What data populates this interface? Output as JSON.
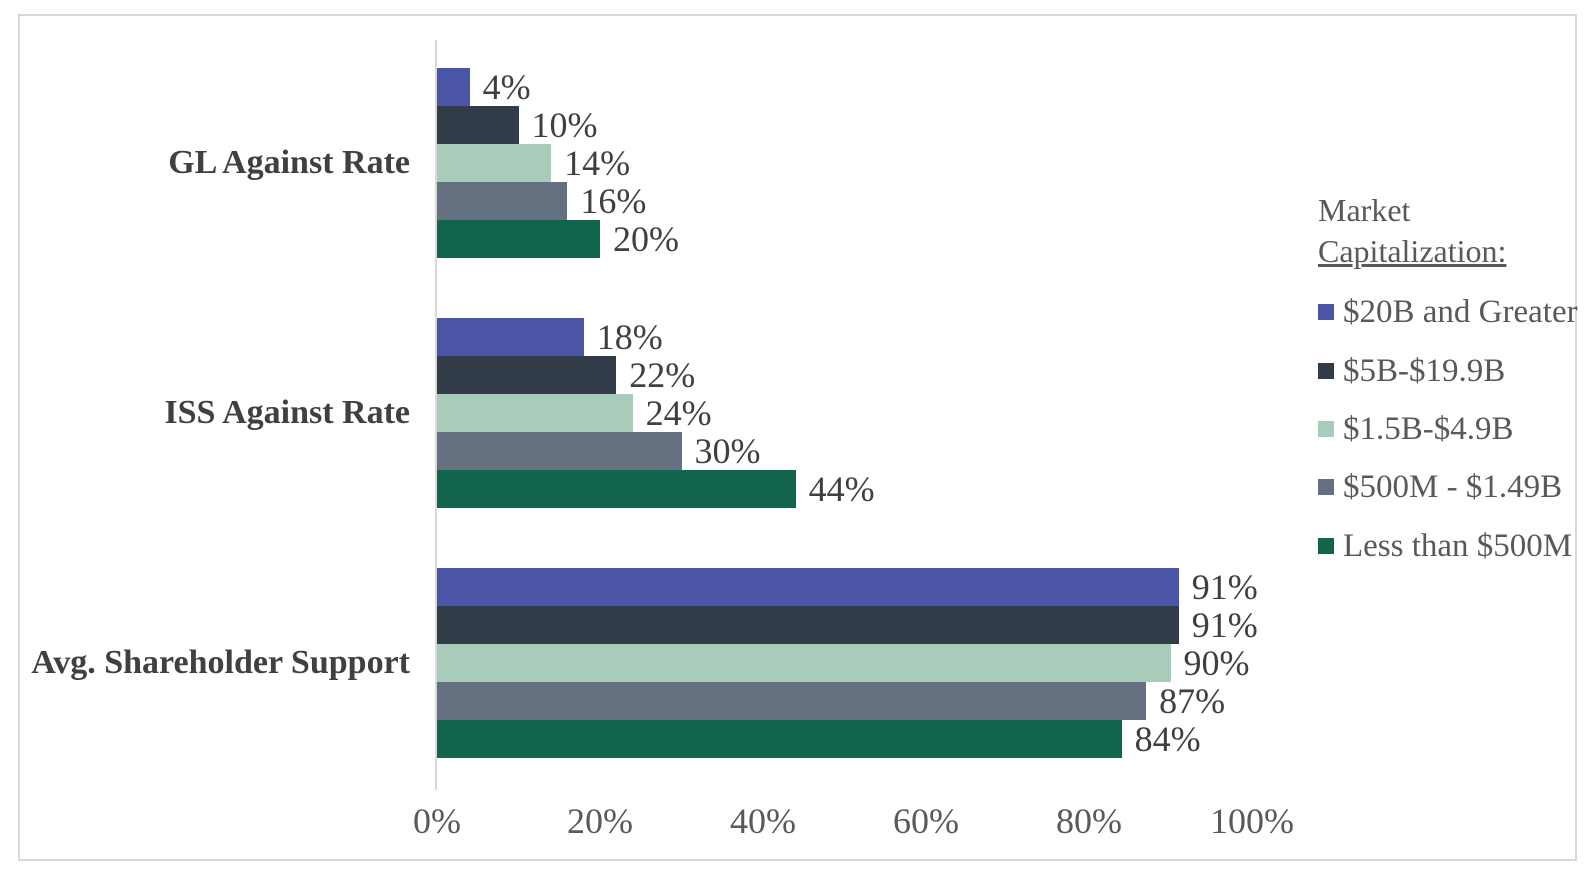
{
  "chart_data": {
    "type": "bar",
    "orientation": "horizontal",
    "title": "",
    "categories": [
      "GL Against Rate",
      "ISS Against Rate",
      "Avg. Shareholder Support"
    ],
    "series": [
      {
        "name": "$20B and Greater",
        "color": "#4A55A5",
        "values": [
          4,
          18,
          91
        ]
      },
      {
        "name": "$5B-$19.9B",
        "color": "#323C49",
        "values": [
          10,
          22,
          91
        ]
      },
      {
        "name": "$1.5B-$4.9B",
        "color": "#A9CBB9",
        "values": [
          14,
          24,
          90
        ]
      },
      {
        "name": "$500M - $1.49B",
        "color": "#657080",
        "values": [
          16,
          30,
          87
        ]
      },
      {
        "name": "Less than $500M",
        "color": "#10654C",
        "values": [
          20,
          44,
          84
        ]
      }
    ],
    "data_label_format": "{v}%",
    "x_axis": {
      "min": 0,
      "max": 100,
      "tick_step": 20,
      "ticks": [
        "0%",
        "20%",
        "40%",
        "60%",
        "80%",
        "100%"
      ]
    },
    "legend": {
      "position": "right",
      "title_line1": "Market",
      "title_line2": "Capitalization:"
    },
    "grid": false,
    "axis_color": "#D9D9D9",
    "frame_border_color": "#D9D9D9",
    "background": "#FFFFFF",
    "text_colors": {
      "data_label": "#3F3F3F",
      "category_label": "#404040",
      "tick_label": "#595959",
      "legend_text": "#595959"
    }
  }
}
